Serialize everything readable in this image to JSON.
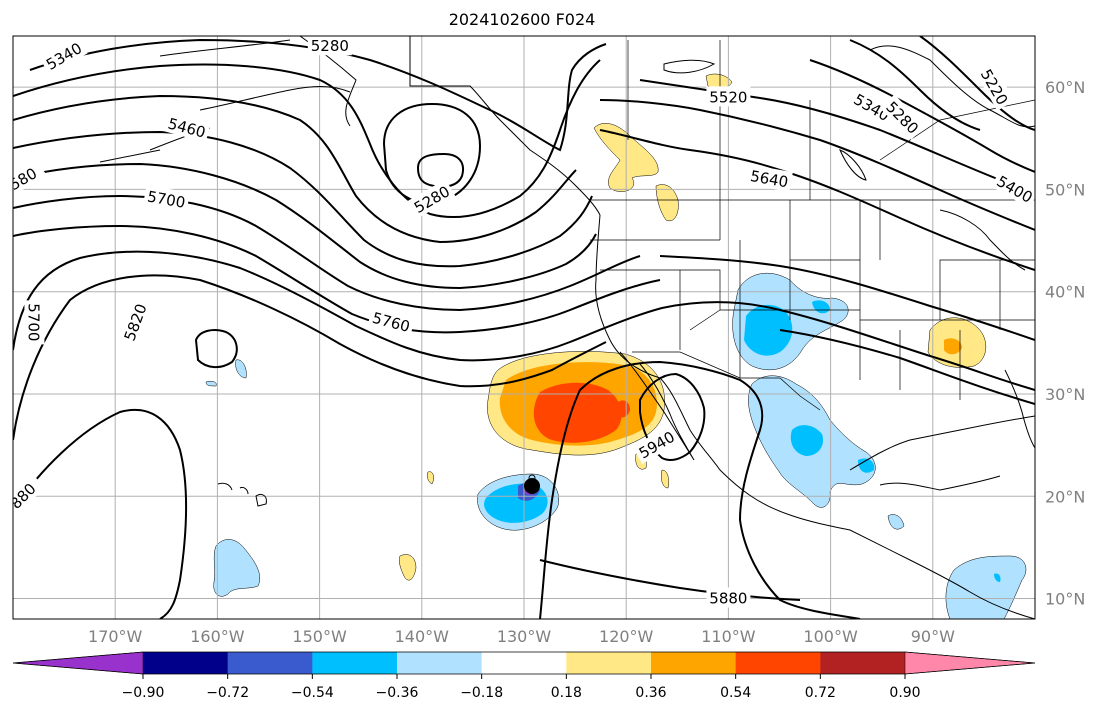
{
  "title": "2024102600 F024",
  "map": {
    "lon_range": [
      -180,
      -80
    ],
    "lat_range": [
      8,
      65
    ],
    "lat_ticks": [
      {
        "lat": 60,
        "label": "60°N"
      },
      {
        "lat": 50,
        "label": "50°N"
      },
      {
        "lat": 40,
        "label": "40°N"
      },
      {
        "lat": 30,
        "label": "30°N"
      },
      {
        "lat": 20,
        "label": "20°N"
      },
      {
        "lat": 10,
        "label": "10°N"
      }
    ],
    "lon_ticks": [
      {
        "lon": -170,
        "label": "170°W"
      },
      {
        "lon": -160,
        "label": "160°W"
      },
      {
        "lon": -150,
        "label": "150°W"
      },
      {
        "lon": -140,
        "label": "140°W"
      },
      {
        "lon": -130,
        "label": "130°W"
      },
      {
        "lon": -120,
        "label": "120°W"
      },
      {
        "lon": -110,
        "label": "110°W"
      },
      {
        "lon": -100,
        "label": "100°W"
      },
      {
        "lon": -90,
        "label": "90°W"
      }
    ],
    "contour_labels": [
      {
        "text": "5340",
        "lon": -175,
        "lat": 63,
        "rot": -30
      },
      {
        "text": "5280",
        "lon": -149,
        "lat": 64,
        "rot": 0
      },
      {
        "text": "5520",
        "lon": -110,
        "lat": 59,
        "rot": 0
      },
      {
        "text": "5340",
        "lon": -96,
        "lat": 58,
        "rot": 30
      },
      {
        "text": "5280",
        "lon": -93,
        "lat": 57,
        "rot": 45
      },
      {
        "text": "5220",
        "lon": -84,
        "lat": 60,
        "rot": 60
      },
      {
        "text": "5400",
        "lon": -82,
        "lat": 50,
        "rot": 30
      },
      {
        "text": "5460",
        "lon": -163,
        "lat": 56,
        "rot": 15
      },
      {
        "text": "5640",
        "lon": -106,
        "lat": 51,
        "rot": 10
      },
      {
        "text": "5280",
        "lon": -139,
        "lat": 49,
        "rot": -30
      },
      {
        "text": "580",
        "lon": -179,
        "lat": 51,
        "rot": -30
      },
      {
        "text": "5700",
        "lon": -165,
        "lat": 49,
        "rot": 10
      },
      {
        "text": "5700",
        "lon": -178,
        "lat": 37,
        "rot": 90
      },
      {
        "text": "5820",
        "lon": -168,
        "lat": 37,
        "rot": -70
      },
      {
        "text": "5760",
        "lon": -143,
        "lat": 37,
        "rot": 15
      },
      {
        "text": "5940",
        "lon": -117,
        "lat": 25,
        "rot": -30
      },
      {
        "text": "5880",
        "lon": -110,
        "lat": 10,
        "rot": 0
      },
      {
        "text": "880",
        "lon": -179,
        "lat": 20,
        "rot": -45
      }
    ]
  },
  "colorbar": {
    "ticks": [
      "−0.90",
      "−0.72",
      "−0.54",
      "−0.36",
      "−0.18",
      "0.18",
      "0.36",
      "0.54",
      "0.72",
      "0.90"
    ],
    "colors": [
      "#9932cc",
      "#00008b",
      "#3a5bcd",
      "#00bfff",
      "#b0e2ff",
      "#ffffff",
      "#ffe885",
      "#ffa500",
      "#ff4500",
      "#b22222",
      "#ff88aa"
    ]
  }
}
